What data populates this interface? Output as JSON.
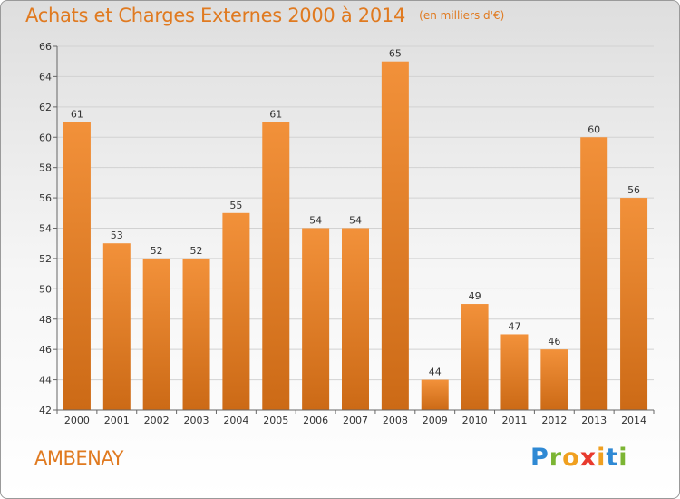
{
  "chart_data": {
    "type": "bar",
    "title": "Achats et Charges Externes 2000 à 2014",
    "subtitle": "(en milliers d'€)",
    "xlabel": "",
    "ylabel": "",
    "categories": [
      "2000",
      "2001",
      "2002",
      "2003",
      "2004",
      "2005",
      "2006",
      "2007",
      "2008",
      "2009",
      "2010",
      "2011",
      "2012",
      "2013",
      "2014"
    ],
    "values": [
      61,
      53,
      52,
      52,
      55,
      61,
      54,
      54,
      65,
      44,
      49,
      47,
      46,
      60,
      56
    ],
    "ylim": [
      42,
      66
    ],
    "yticks": [
      42,
      44,
      46,
      48,
      50,
      52,
      54,
      56,
      58,
      60,
      62,
      64,
      66
    ],
    "grid": true,
    "legend": "none",
    "bar_color": "#f2913a",
    "bar_color_dark": "#cc6a16"
  },
  "footer": {
    "town": "AMBENAY",
    "logo_letters": [
      "P",
      "r",
      "o",
      "x",
      "i",
      "t",
      "i"
    ],
    "logo_colors": [
      "#2f89d4",
      "#7cb534",
      "#f0a020",
      "#e83a2e",
      "#f0a020",
      "#2f89d4",
      "#7cb534"
    ]
  }
}
